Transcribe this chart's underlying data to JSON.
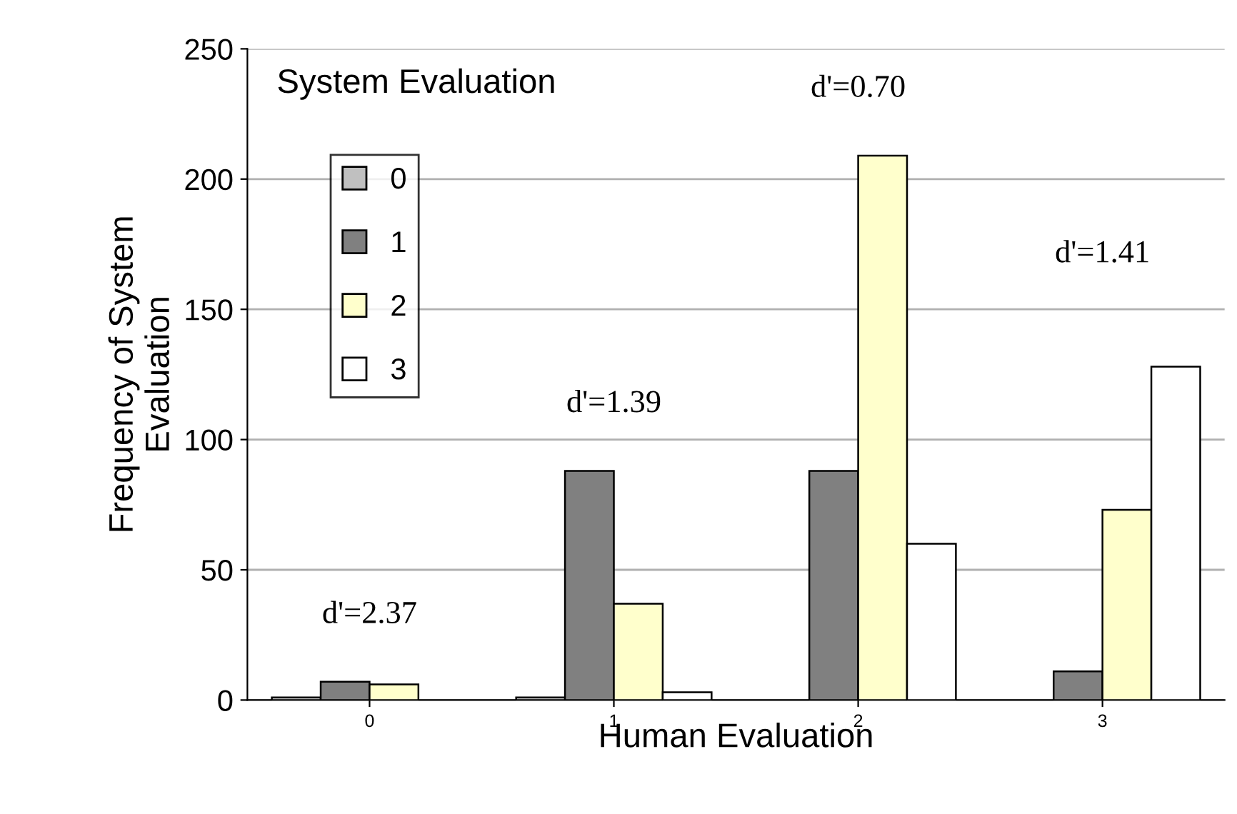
{
  "chart_data": {
    "type": "bar",
    "title": "System Evaluation",
    "xlabel": "Human Evaluation",
    "ylabel": "Frequency of System\nEvaluation",
    "categories": [
      "0",
      "1",
      "2",
      "3"
    ],
    "series": [
      {
        "name": "0",
        "color": "#c0c0c0",
        "values": [
          1,
          1,
          null,
          null
        ]
      },
      {
        "name": "1",
        "color": "#808080",
        "values": [
          7,
          88,
          88,
          11
        ]
      },
      {
        "name": "2",
        "color": "#ffffcc",
        "values": [
          6,
          37,
          209,
          73
        ]
      },
      {
        "name": "3",
        "color": "#ffffff",
        "values": [
          null,
          3,
          60,
          128
        ]
      }
    ],
    "annotations": [
      "d'=2.37",
      "d'=1.39",
      "d'=0.70",
      "d'=1.41"
    ],
    "ylim": [
      0,
      250
    ],
    "yticks": [
      0,
      50,
      100,
      150,
      200,
      250
    ],
    "grid": "y",
    "legend": "top left"
  }
}
